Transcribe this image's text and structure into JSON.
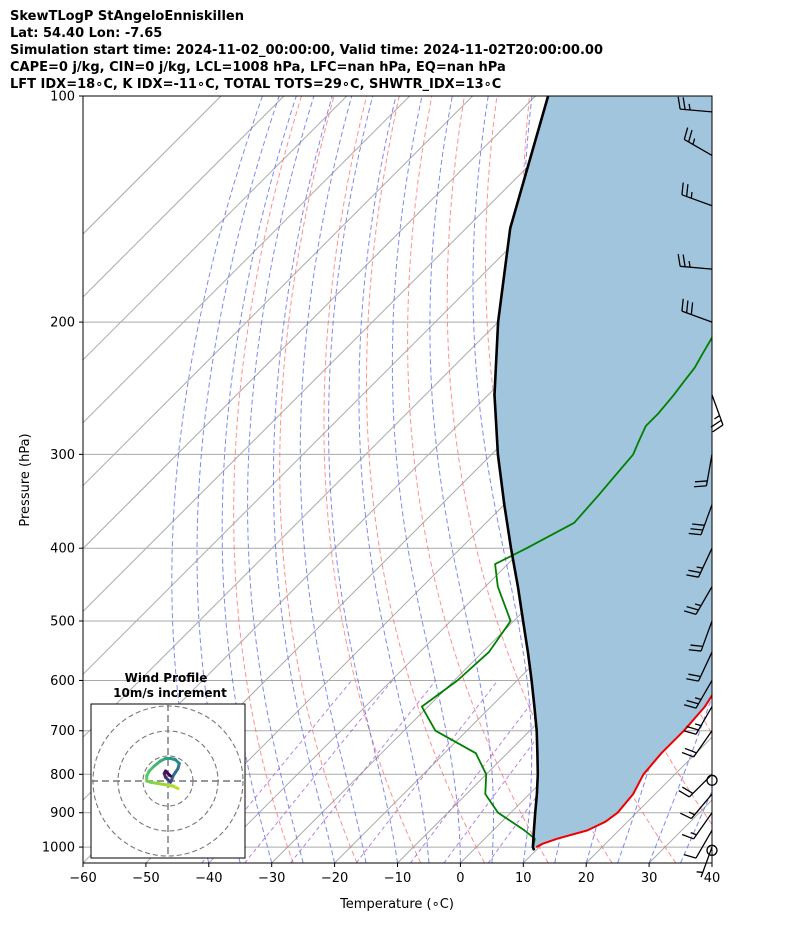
{
  "header": {
    "line1": "SkewTLogP StAngeloEnniskillen",
    "line2": "Lat: 54.40   Lon: -7.65",
    "line3": "Simulation start time: 2024-11-02_00:00:00, Valid time: 2024-11-02T20:00:00.00",
    "line4": "CAPE=0 j/kg, CIN=0 j/kg, LCL=1008 hPa, LFC=nan hPa, EQ=nan hPa",
    "line5": "LFT IDX=18∘C, K IDX=-11∘C, TOTAL TOTS=29∘C, SHWTR_IDX=13∘C"
  },
  "chart_data": {
    "type": "skew-t",
    "xlabel": "Temperature (∘C)",
    "ylabel": "Pressure (hPa)",
    "xlim": [
      -60,
      40
    ],
    "ylim": [
      1050,
      100
    ],
    "log_y": true,
    "x_ticks": [
      -60,
      -50,
      -40,
      -30,
      -20,
      -10,
      0,
      10,
      20,
      30,
      40
    ],
    "y_ticks": [
      100,
      200,
      300,
      400,
      500,
      600,
      700,
      800,
      900,
      1000
    ],
    "grid": true,
    "colors": {
      "temperature": "#ee0000",
      "dewpoint": "#008000",
      "parcel": "#000000",
      "shade": "#a2c5de",
      "isotherm": "#aaaaaa",
      "dry_adiabat": "#ff6b6b",
      "moist_adiabat": "#5e6bef",
      "mixing_ratio": "#9c4fd0"
    },
    "temperature": [
      [
        1000,
        9.5
      ],
      [
        990,
        10.0
      ],
      [
        975,
        11.5
      ],
      [
        950,
        15.0
      ],
      [
        925,
        16.5
      ],
      [
        900,
        17.0
      ],
      [
        850,
        16.5
      ],
      [
        800,
        15.0
      ],
      [
        750,
        14.5
      ],
      [
        700,
        14.5
      ],
      [
        650,
        14.0
      ],
      [
        600,
        12.5
      ],
      [
        550,
        10.0
      ],
      [
        500,
        6.5
      ],
      [
        450,
        3.0
      ],
      [
        400,
        -1.5
      ],
      [
        370,
        -4.0
      ],
      [
        350,
        -5.5
      ],
      [
        320,
        -7.5
      ],
      [
        300,
        -9.0
      ],
      [
        280,
        -10.5
      ],
      [
        260,
        -12.0
      ],
      [
        240,
        -14.5
      ],
      [
        220,
        -17.5
      ],
      [
        200,
        -20.5
      ],
      [
        190,
        -22.0
      ],
      [
        180,
        -23.5
      ],
      [
        170,
        -25.5
      ],
      [
        160,
        -27.5
      ],
      [
        150,
        -29.0
      ],
      [
        140,
        -31.5
      ],
      [
        130,
        -35.5
      ],
      [
        120,
        -38.5
      ],
      [
        110,
        -39.5
      ],
      [
        105,
        -41.5
      ],
      [
        100,
        -43.0
      ]
    ],
    "dewpoint": [
      [
        1000,
        9.0
      ],
      [
        975,
        8.0
      ],
      [
        950,
        5.0
      ],
      [
        900,
        -2.0
      ],
      [
        850,
        -7.0
      ],
      [
        800,
        -10.0
      ],
      [
        750,
        -15.0
      ],
      [
        700,
        -25.0
      ],
      [
        650,
        -31.0
      ],
      [
        600,
        -29.5
      ],
      [
        550,
        -29.0
      ],
      [
        500,
        -30.5
      ],
      [
        450,
        -38.0
      ],
      [
        420,
        -42.0
      ],
      [
        400,
        -39.5
      ],
      [
        370,
        -36.0
      ],
      [
        340,
        -36.5
      ],
      [
        320,
        -37.0
      ],
      [
        300,
        -37.5
      ],
      [
        290,
        -38.5
      ],
      [
        275,
        -40.0
      ],
      [
        265,
        -40.0
      ],
      [
        250,
        -40.5
      ],
      [
        240,
        -41.0
      ],
      [
        230,
        -41.5
      ],
      [
        220,
        -42.5
      ],
      [
        210,
        -43.5
      ],
      [
        200,
        -44.5
      ],
      [
        190,
        -46.0
      ],
      [
        180,
        -48.0
      ],
      [
        170,
        -51.0
      ],
      [
        160,
        -52.0
      ],
      [
        150,
        -53.0
      ],
      [
        140,
        -55.0
      ],
      [
        130,
        -56.5
      ],
      [
        120,
        -58.5
      ],
      [
        110,
        -59.5
      ],
      [
        100,
        -61.5
      ]
    ],
    "parcel_profile": [
      [
        1010,
        9.7
      ],
      [
        1000,
        9.0
      ],
      [
        950,
        6.5
      ],
      [
        900,
        3.9
      ],
      [
        850,
        1.2
      ],
      [
        800,
        -1.8
      ],
      [
        750,
        -5.2
      ],
      [
        700,
        -8.9
      ],
      [
        650,
        -13.1
      ],
      [
        600,
        -17.7
      ],
      [
        550,
        -22.8
      ],
      [
        500,
        -28.5
      ],
      [
        450,
        -34.8
      ],
      [
        400,
        -42.0
      ],
      [
        350,
        -50.0
      ],
      [
        300,
        -59.0
      ],
      [
        250,
        -69.0
      ],
      [
        200,
        -80.0
      ],
      [
        150,
        -93.0
      ],
      [
        100,
        -108.0
      ]
    ],
    "wind_barbs": [
      {
        "pressure": 1000,
        "speed_kt": 5,
        "direction_deg": 200
      },
      {
        "pressure": 950,
        "speed_kt": 10,
        "direction_deg": 210
      },
      {
        "pressure": 900,
        "speed_kt": 15,
        "direction_deg": 215
      },
      {
        "pressure": 850,
        "speed_kt": 15,
        "direction_deg": 220
      },
      {
        "pressure": 800,
        "speed_kt": 20,
        "direction_deg": 225
      },
      {
        "pressure": 700,
        "speed_kt": 20,
        "direction_deg": 215
      },
      {
        "pressure": 650,
        "speed_kt": 25,
        "direction_deg": 210
      },
      {
        "pressure": 600,
        "speed_kt": 25,
        "direction_deg": 210
      },
      {
        "pressure": 550,
        "speed_kt": 20,
        "direction_deg": 205
      },
      {
        "pressure": 500,
        "speed_kt": 20,
        "direction_deg": 200
      },
      {
        "pressure": 450,
        "speed_kt": 25,
        "direction_deg": 210
      },
      {
        "pressure": 400,
        "speed_kt": 25,
        "direction_deg": 205
      },
      {
        "pressure": 350,
        "speed_kt": 30,
        "direction_deg": 200
      },
      {
        "pressure": 300,
        "speed_kt": 20,
        "direction_deg": 190
      },
      {
        "pressure": 250,
        "speed_kt": 25,
        "direction_deg": 160
      },
      {
        "pressure": 200,
        "speed_kt": 30,
        "direction_deg": 290
      },
      {
        "pressure": 170,
        "speed_kt": 25,
        "direction_deg": 275
      },
      {
        "pressure": 140,
        "speed_kt": 25,
        "direction_deg": 290
      },
      {
        "pressure": 120,
        "speed_kt": 25,
        "direction_deg": 300
      },
      {
        "pressure": 105,
        "speed_kt": 25,
        "direction_deg": 275
      }
    ],
    "hodograph": {
      "title": "Wind Profile",
      "subtitle": "10m/s increment",
      "rings_ms": [
        10,
        20,
        30
      ],
      "points_uv": [
        [
          4,
          -3
        ],
        [
          2,
          -2
        ],
        [
          -1,
          -1.5
        ],
        [
          -4,
          -1
        ],
        [
          -7,
          -0.5
        ],
        [
          -8.5,
          0
        ],
        [
          -8.5,
          2
        ],
        [
          -7.5,
          4
        ],
        [
          -5.5,
          6
        ],
        [
          -3,
          8
        ],
        [
          -1,
          9
        ],
        [
          1,
          9
        ],
        [
          3,
          8.5
        ],
        [
          4.5,
          7
        ],
        [
          4,
          5
        ],
        [
          3,
          3.5
        ],
        [
          2,
          2
        ],
        [
          1.5,
          0.5
        ],
        [
          1,
          -0.5
        ],
        [
          0,
          0.5
        ],
        [
          -1,
          1.5
        ],
        [
          -1.5,
          3
        ],
        [
          -1,
          4
        ],
        [
          0,
          3
        ],
        [
          1,
          2
        ]
      ]
    }
  }
}
